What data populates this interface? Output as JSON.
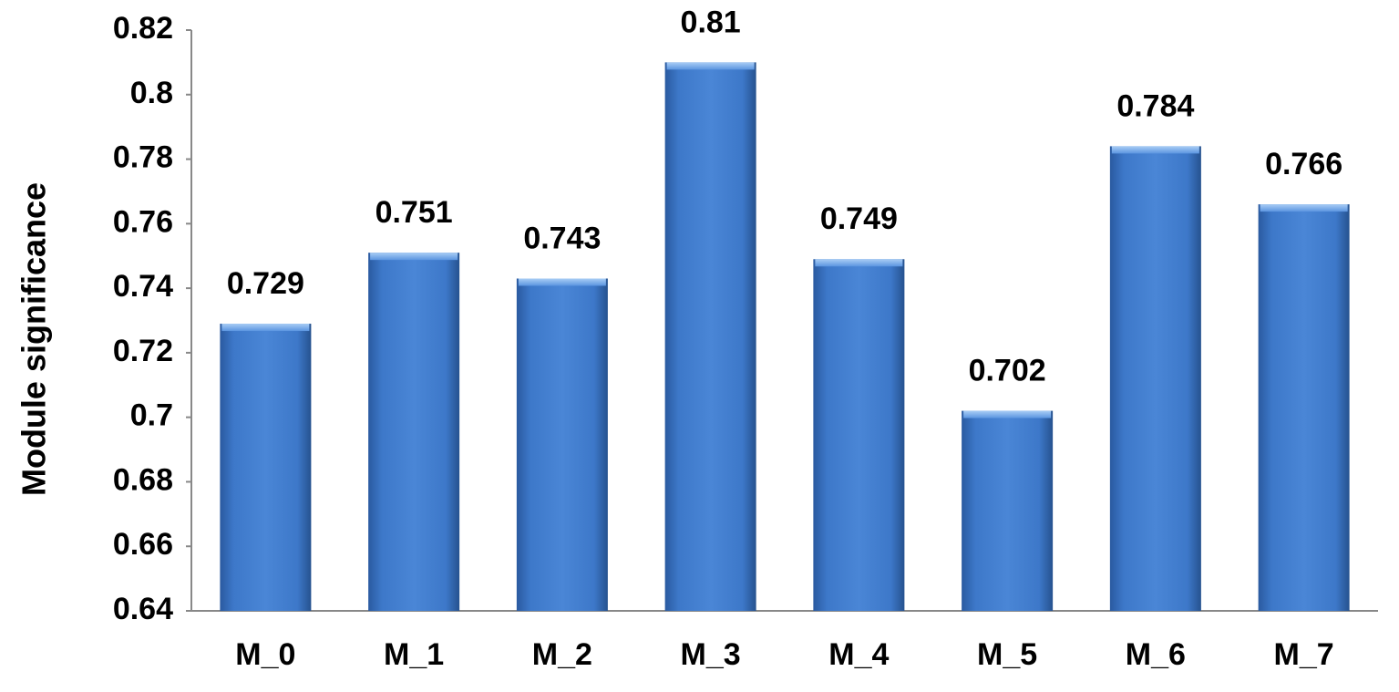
{
  "chart_data": {
    "type": "bar",
    "y_label": "Module significance",
    "categories": [
      "M_0",
      "M_1",
      "M_2",
      "M_3",
      "M_4",
      "M_5",
      "M_6",
      "M_7"
    ],
    "values": [
      0.729,
      0.751,
      0.743,
      0.81,
      0.749,
      0.702,
      0.784,
      0.766
    ],
    "color": "#3d78c9",
    "ylim": [
      0.64,
      0.82
    ],
    "yticks": [
      0.64,
      0.66,
      0.68,
      0.7,
      0.72,
      0.74,
      0.76,
      0.78,
      0.8,
      0.82
    ],
    "grid": false
  }
}
